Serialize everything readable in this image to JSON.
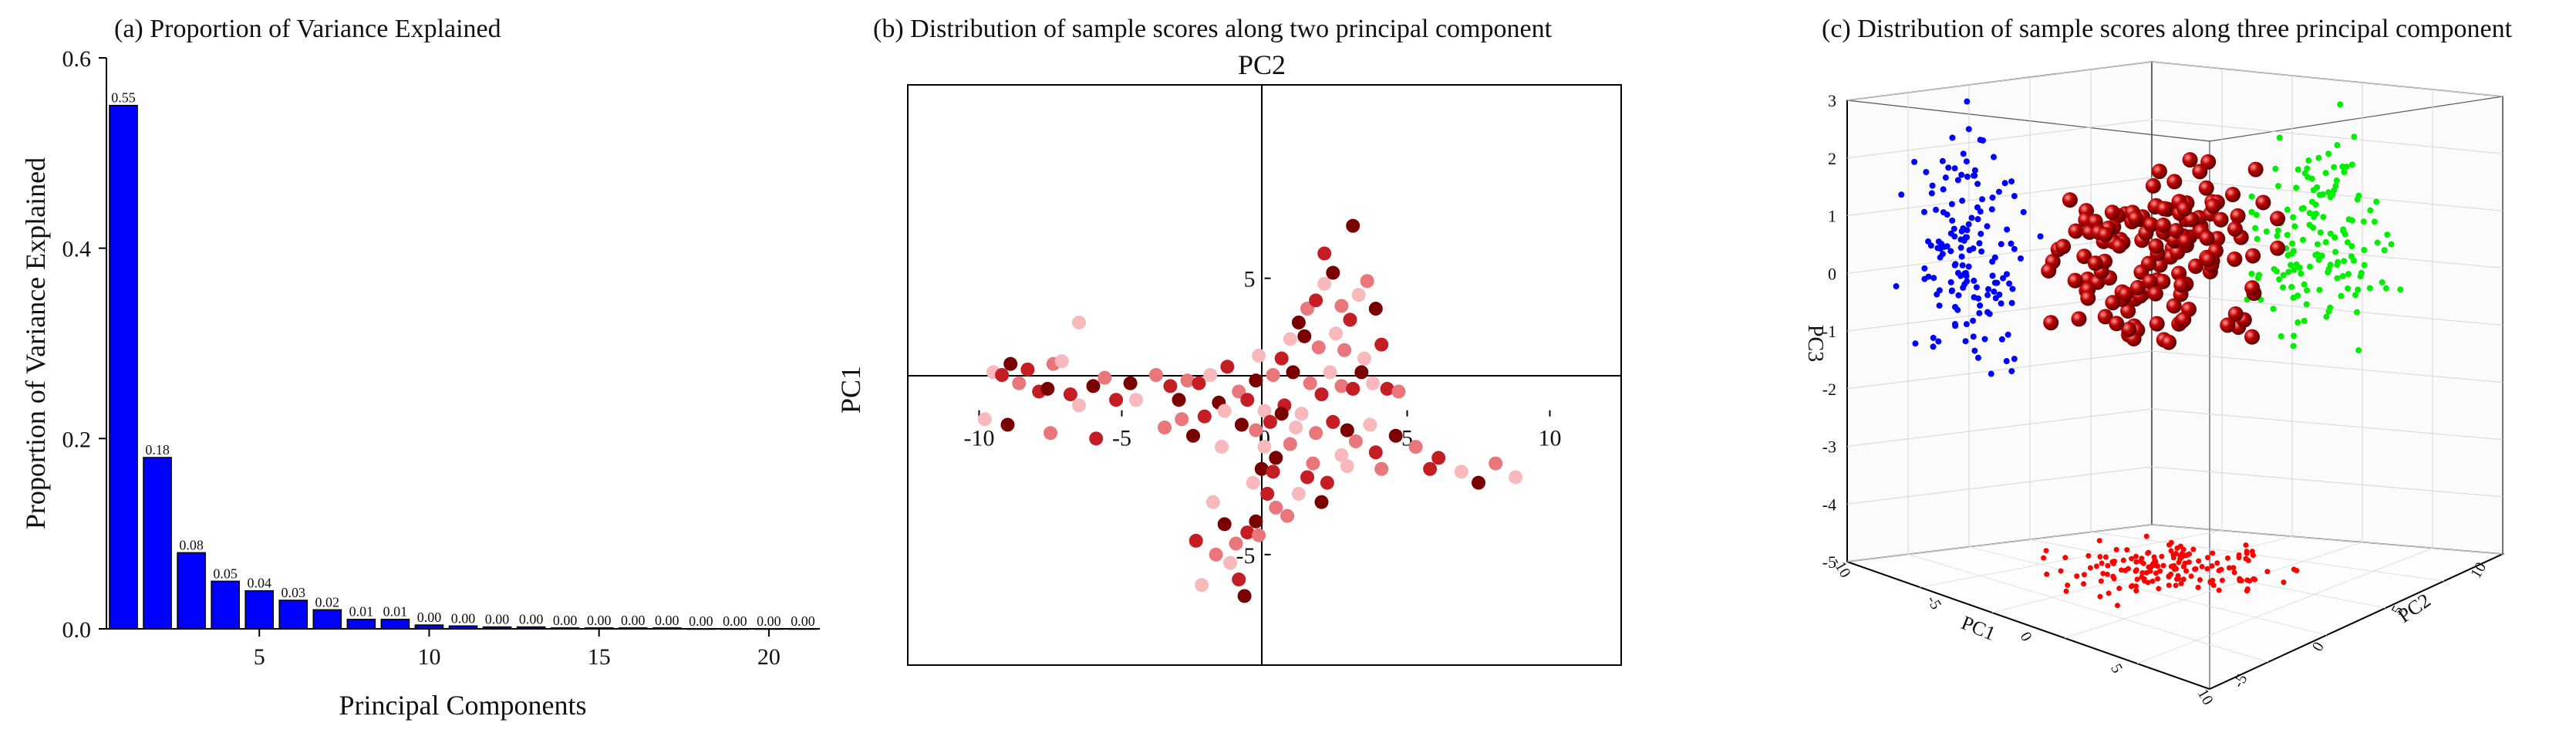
{
  "chart_data": [
    {
      "id": "a",
      "type": "bar",
      "title": "(a) Proportion of Variance Explained",
      "xlabel": "Principal Components",
      "ylabel": "Proportion of Variance Explained",
      "xlim": [
        0.5,
        21.5
      ],
      "ylim": [
        0,
        0.6
      ],
      "xticks": [
        "5",
        "10",
        "15",
        "20"
      ],
      "yticks": [
        "0.0",
        "0.2",
        "0.4",
        "0.6"
      ],
      "categories": [
        1,
        2,
        3,
        4,
        5,
        6,
        7,
        8,
        9,
        10,
        11,
        12,
        13,
        14,
        15,
        16,
        17,
        18,
        19,
        20,
        21
      ],
      "values": [
        0.55,
        0.18,
        0.08,
        0.05,
        0.04,
        0.03,
        0.02,
        0.01,
        0.01,
        0.004,
        0.003,
        0.002,
        0.002,
        0.001,
        0.001,
        0.001,
        0.001,
        0.0,
        0.0,
        0.0,
        0.0
      ],
      "data_labels": [
        "0.55",
        "0.18",
        "0.08",
        "0.05",
        "0.04",
        "0.03",
        "0.02",
        "0.01",
        "0.01",
        "0.00",
        "0.00",
        "0.00",
        "0.00",
        "0.00",
        "0.00",
        "0.00",
        "0.00",
        "0.00",
        "0.00",
        "0.00",
        "0.00"
      ],
      "bar_color": "#0000ff",
      "grid": false
    },
    {
      "id": "b",
      "type": "scatter",
      "title": "(b) Distribution of sample scores along  two principal component",
      "xlabel": "PC1",
      "ylabel": "PC2",
      "xlim": [
        -12.5,
        12.5
      ],
      "ylim": [
        -9,
        12
      ],
      "xticks": [
        "-10",
        "-5",
        "0",
        "5",
        "10"
      ],
      "yticks": [
        "-5",
        "0",
        "5"
      ],
      "grid": false,
      "colors": [
        "#7a0000",
        "#c41e24",
        "#e8767a",
        "#f7b9bb"
      ],
      "points": [
        [
          -9.5,
          1.6,
          3
        ],
        [
          -9.2,
          1.5,
          1
        ],
        [
          -8.9,
          1.9,
          0
        ],
        [
          -8.6,
          1.2,
          2
        ],
        [
          -8.3,
          1.7,
          1
        ],
        [
          -7.9,
          0.9,
          1
        ],
        [
          -7.6,
          1.0,
          0
        ],
        [
          -7.4,
          1.9,
          2
        ],
        [
          -7.1,
          2.0,
          3
        ],
        [
          -6.8,
          0.8,
          1
        ],
        [
          -6.5,
          0.4,
          3
        ],
        [
          -6.0,
          1.1,
          0
        ],
        [
          -5.6,
          1.4,
          2
        ],
        [
          -5.2,
          0.6,
          1
        ],
        [
          -4.7,
          1.2,
          0
        ],
        [
          -4.5,
          0.6,
          3
        ],
        [
          -3.8,
          1.5,
          2
        ],
        [
          -3.3,
          1.1,
          1
        ],
        [
          -3.0,
          0.6,
          0
        ],
        [
          -2.7,
          1.3,
          2
        ],
        [
          -2.3,
          1.2,
          1
        ],
        [
          -1.9,
          1.5,
          3
        ],
        [
          -1.6,
          0.5,
          0
        ],
        [
          -1.3,
          1.8,
          1
        ],
        [
          -0.9,
          0.9,
          2
        ],
        [
          -0.6,
          0.6,
          1
        ],
        [
          -0.3,
          1.3,
          0
        ],
        [
          0.0,
          0.2,
          3
        ],
        [
          0.3,
          1.5,
          2
        ],
        [
          0.7,
          0.4,
          1
        ],
        [
          1.0,
          1.6,
          0
        ],
        [
          1.3,
          0.1,
          3
        ],
        [
          1.6,
          1.2,
          2
        ],
        [
          2.0,
          0.8,
          1
        ],
        [
          2.3,
          1.6,
          3
        ],
        [
          2.7,
          1.1,
          2
        ],
        [
          3.1,
          1.0,
          1
        ],
        [
          3.4,
          1.6,
          0
        ],
        [
          3.8,
          1.2,
          3
        ],
        [
          4.3,
          1.0,
          1
        ],
        [
          4.7,
          0.9,
          2
        ],
        [
          -9.8,
          -0.1,
          3
        ],
        [
          -9.0,
          -0.3,
          0
        ],
        [
          -7.5,
          -0.6,
          2
        ],
        [
          -5.9,
          -0.8,
          1
        ],
        [
          -3.5,
          -0.4,
          2
        ],
        [
          -2.5,
          -0.7,
          0
        ],
        [
          -1.5,
          -1.1,
          3
        ],
        [
          -0.1,
          -1.9,
          0
        ],
        [
          -0.4,
          -2.4,
          3
        ],
        [
          0.1,
          -2.8,
          1
        ],
        [
          0.4,
          -3.3,
          2
        ],
        [
          -0.3,
          -3.8,
          0
        ],
        [
          -0.6,
          -4.2,
          1
        ],
        [
          -1.0,
          -4.6,
          2
        ],
        [
          -1.2,
          -5.3,
          3
        ],
        [
          -0.9,
          -5.9,
          1
        ],
        [
          -0.7,
          -6.5,
          0
        ],
        [
          -0.2,
          -4.3,
          2
        ],
        [
          0.3,
          -2.0,
          1
        ],
        [
          0.9,
          -1.0,
          2
        ],
        [
          1.5,
          -2.2,
          1
        ],
        [
          2.0,
          -3.1,
          0
        ],
        [
          2.7,
          -1.4,
          3
        ],
        [
          3.2,
          -0.9,
          2
        ],
        [
          3.9,
          -1.3,
          1
        ],
        [
          4.6,
          -0.7,
          0
        ],
        [
          5.3,
          -1.1,
          2
        ],
        [
          6.1,
          -1.5,
          1
        ],
        [
          6.9,
          -2.0,
          3
        ],
        [
          7.5,
          -2.4,
          0
        ],
        [
          8.1,
          -1.7,
          2
        ],
        [
          8.8,
          -2.2,
          3
        ],
        [
          0.6,
          2.1,
          1
        ],
        [
          0.9,
          2.8,
          3
        ],
        [
          1.2,
          3.4,
          0
        ],
        [
          1.5,
          3.9,
          2
        ],
        [
          1.8,
          4.2,
          1
        ],
        [
          2.1,
          4.8,
          3
        ],
        [
          2.4,
          5.2,
          0
        ],
        [
          2.7,
          4.0,
          2
        ],
        [
          3.0,
          3.5,
          1
        ],
        [
          3.3,
          4.4,
          3
        ],
        [
          3.6,
          4.9,
          2
        ],
        [
          3.9,
          3.9,
          0
        ],
        [
          2.1,
          5.9,
          1
        ],
        [
          3.1,
          6.9,
          0
        ],
        [
          2.5,
          3.0,
          3
        ],
        [
          1.9,
          2.5,
          2
        ],
        [
          4.1,
          2.6,
          1
        ],
        [
          3.5,
          2.1,
          3
        ],
        [
          2.8,
          2.4,
          2
        ],
        [
          1.4,
          2.9,
          0
        ],
        [
          -0.2,
          2.2,
          3
        ],
        [
          -6.5,
          3.4,
          3
        ],
        [
          -2.9,
          -0.1,
          2
        ],
        [
          -2.1,
          0.0,
          1
        ],
        [
          -1.4,
          0.2,
          3
        ],
        [
          -0.8,
          -0.3,
          0
        ],
        [
          -0.3,
          -0.5,
          2
        ],
        [
          0.2,
          -0.2,
          1
        ],
        [
          0.6,
          0.1,
          0
        ],
        [
          1.1,
          -0.4,
          3
        ],
        [
          1.8,
          -0.6,
          2
        ],
        [
          2.4,
          -0.2,
          1
        ],
        [
          2.9,
          -0.5,
          0
        ],
        [
          3.7,
          -0.3,
          3
        ],
        [
          0.4,
          -1.5,
          0
        ],
        [
          1.2,
          -2.8,
          3
        ],
        [
          1.7,
          -1.7,
          2
        ],
        [
          2.2,
          -2.4,
          1
        ],
        [
          0.8,
          -3.6,
          2
        ],
        [
          -1.8,
          -3.1,
          3
        ],
        [
          -2.4,
          -4.5,
          1
        ],
        [
          -1.7,
          -5.0,
          2
        ],
        [
          -2.2,
          -6.1,
          3
        ],
        [
          -1.4,
          -3.9,
          0
        ],
        [
          0.0,
          -1.1,
          3
        ],
        [
          4.1,
          -1.9,
          2
        ],
        [
          5.8,
          -1.9,
          1
        ],
        [
          2.9,
          -1.8,
          3
        ]
      ]
    },
    {
      "id": "c",
      "type": "scatter",
      "title": "(c) Distribution of sample scores along  three principal component",
      "xlabel": "PC1",
      "ylabel": "PC2",
      "zlabel": "PC3",
      "zticks": [
        "3",
        "2",
        "1",
        "0",
        "-1",
        "-2",
        "-3",
        "-4",
        "-5"
      ],
      "xticks": [
        "-10",
        "-5",
        "0",
        "5",
        "10"
      ],
      "yticks": [
        "-5",
        "0",
        "5",
        "10"
      ],
      "grid": true,
      "colors": {
        "pc2_pc3_projection": "#0000ff",
        "pc1_pc3_projection": "#00ee00",
        "pc1_pc2_projection": "#ff0000",
        "3d_points": "#c00000"
      }
    }
  ]
}
